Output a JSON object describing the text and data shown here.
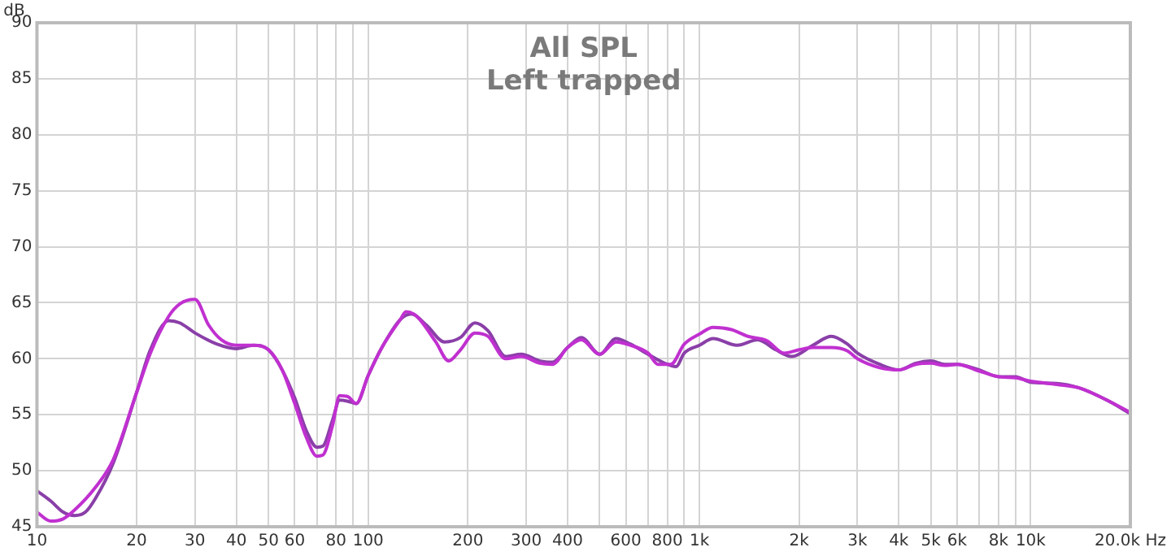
{
  "chart_data": {
    "type": "line",
    "title": "All SPL",
    "subtitle": "Left trapped",
    "ylabel": "dB",
    "log": "x",
    "grid": true,
    "legend": false,
    "marker": "none",
    "line_style": "solid",
    "xlim": [
      10,
      20000
    ],
    "ylim": [
      45,
      90
    ],
    "xticks": [
      10,
      20,
      30,
      40,
      50,
      60,
      {
        "value": 70,
        "label": null
      },
      80,
      {
        "value": 90,
        "label": null
      },
      100,
      200,
      300,
      400,
      {
        "value": 500,
        "label": null
      },
      600,
      {
        "value": 700,
        "label": null
      },
      800,
      {
        "value": 900,
        "label": null
      },
      {
        "value": 1000,
        "label": "1k"
      },
      {
        "value": 2000,
        "label": "2k"
      },
      {
        "value": 3000,
        "label": "3k"
      },
      {
        "value": 4000,
        "label": "4k"
      },
      {
        "value": 5000,
        "label": "5k"
      },
      {
        "value": 6000,
        "label": "6k"
      },
      {
        "value": 7000,
        "label": null
      },
      {
        "value": 8000,
        "label": "8k"
      },
      {
        "value": 9000,
        "label": null
      },
      {
        "value": 10000,
        "label": "10k"
      },
      {
        "value": 20000,
        "label": "20.0k Hz"
      }
    ],
    "yticks": [
      45,
      50,
      55,
      60,
      65,
      70,
      75,
      80,
      85,
      90
    ],
    "series": [
      {
        "color": "#c030d0",
        "x": [
          10,
          11,
          12,
          13,
          15,
          17,
          20,
          22,
          25,
          27,
          30,
          33,
          36,
          40,
          45,
          50,
          55,
          60,
          65,
          70,
          73,
          78,
          82,
          87,
          92,
          100,
          110,
          125,
          130,
          140,
          160,
          175,
          190,
          210,
          230,
          260,
          290,
          330,
          360,
          400,
          440,
          500,
          560,
          620,
          700,
          750,
          820,
          900,
          1000,
          1100,
          1250,
          1400,
          1600,
          1800,
          2000,
          2200,
          2500,
          2800,
          3000,
          3500,
          4000,
          4500,
          5000,
          5500,
          6000,
          7000,
          8000,
          9000,
          10000,
          12000,
          14000,
          17000,
          20000
        ],
        "values": [
          46.3,
          45.5,
          45.7,
          46.5,
          48.5,
          51,
          57,
          60.5,
          63.8,
          64.9,
          65.3,
          63,
          61.7,
          61.2,
          61.2,
          60.8,
          59,
          56,
          53,
          51.3,
          51.4,
          54,
          56.7,
          56.6,
          56,
          58.5,
          61,
          63.5,
          64.2,
          63.8,
          61.5,
          59.8,
          60.8,
          62.3,
          62,
          60,
          60.2,
          59.6,
          59.5,
          61,
          61.7,
          60.4,
          61.5,
          61.2,
          60.5,
          59.5,
          59.5,
          61.3,
          62.2,
          62.8,
          62.6,
          62,
          61.6,
          60.5,
          60.8,
          61,
          61,
          60.7,
          60,
          59.2,
          59,
          59.5,
          59.6,
          59.4,
          59.5,
          58.9,
          58.4,
          58.3,
          58,
          57.7,
          57.4,
          56.3,
          55.2
        ]
      },
      {
        "color": "#8a3fa8",
        "x": [
          10,
          11,
          12,
          13,
          14,
          15,
          17,
          20,
          22,
          25,
          27,
          30,
          35,
          40,
          45,
          50,
          55,
          60,
          65,
          70,
          73,
          78,
          82,
          87,
          92,
          100,
          110,
          125,
          135,
          150,
          170,
          190,
          210,
          230,
          260,
          290,
          330,
          360,
          400,
          440,
          500,
          560,
          620,
          700,
          800,
          850,
          900,
          1000,
          1100,
          1300,
          1500,
          1700,
          1900,
          2200,
          2500,
          2800,
          3000,
          3500,
          4000,
          4500,
          5000,
          5500,
          6000,
          7000,
          8000,
          9000,
          10000,
          12000,
          14000,
          17000,
          20000
        ],
        "values": [
          48.2,
          47.3,
          46.3,
          46,
          46.3,
          47.5,
          50.7,
          57,
          60.8,
          63.4,
          63.2,
          62.3,
          61.3,
          60.9,
          61.2,
          60.8,
          59,
          56.5,
          53.6,
          52.1,
          52.2,
          54.5,
          56.3,
          56.2,
          56,
          58.5,
          61,
          63.5,
          64,
          63,
          61.5,
          61.9,
          63.2,
          62.5,
          60.2,
          60.4,
          59.8,
          59.7,
          61,
          61.9,
          60.4,
          61.8,
          61.3,
          60.4,
          59.5,
          59.3,
          60.5,
          61.2,
          61.8,
          61.2,
          61.7,
          60.8,
          60.2,
          61.2,
          62,
          61.3,
          60.5,
          59.5,
          59,
          59.6,
          59.8,
          59.5,
          59.5,
          59,
          58.4,
          58.4,
          57.9,
          57.8,
          57.4,
          56.3,
          55.1
        ]
      }
    ]
  }
}
